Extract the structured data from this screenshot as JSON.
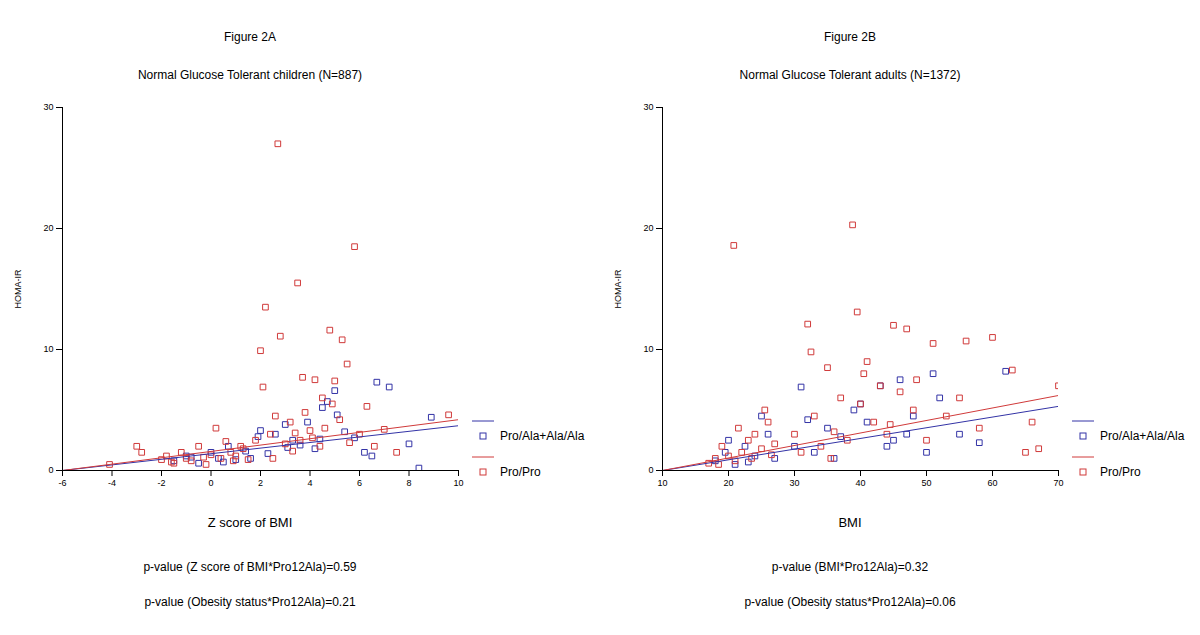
{
  "chart_data": [
    {
      "type": "scatter",
      "title": "Figure 2A",
      "subtitle": "Normal Glucose Tolerant children (N=887)",
      "x_label": "Z score of BMI",
      "y_label": "HOMA-IR",
      "annotations": [
        "p-value (Z score of BMI*Pro12Ala)=0.59",
        "p-value (Obesity status*Pro12Ala)=0.21"
      ],
      "xlim": [
        -6,
        10
      ],
      "xticks": [
        -6,
        -4,
        -2,
        0,
        2,
        4,
        6,
        8,
        10
      ],
      "ylim": [
        0,
        30
      ],
      "yticks": [
        0,
        10,
        20,
        30
      ],
      "legend": "right",
      "series": [
        {
          "name": "Pro/Ala+Ala/Ala",
          "color": "#3333a6",
          "marker": "square",
          "x": [
            -1.5,
            -1.0,
            -0.5,
            0,
            0.3,
            0.7,
            1.0,
            1.4,
            1.9,
            2.3,
            2.6,
            3.0,
            3.3,
            3.6,
            3.9,
            4.2,
            4.5,
            4.7,
            5.0,
            5.4,
            5.8,
            6.2,
            6.7,
            7.2,
            8.0,
            8.4,
            8.9,
            -0.8,
            0.5,
            2.0,
            3.1,
            4.4,
            5.1,
            6.5,
            1.6
          ],
          "values": [
            0.8,
            1.2,
            0.6,
            1.5,
            1.0,
            2.0,
            0.9,
            1.6,
            2.8,
            1.4,
            3.0,
            3.8,
            2.5,
            2.1,
            4.0,
            1.8,
            5.2,
            5.7,
            6.6,
            3.2,
            2.7,
            1.5,
            7.3,
            6.9,
            2.2,
            0.2,
            4.4,
            1.1,
            0.7,
            3.3,
            1.9,
            2.6,
            4.6,
            1.2,
            1.0
          ],
          "fit": {
            "x": [
              -6,
              10
            ],
            "values": [
              0,
              3.7
            ]
          }
        },
        {
          "name": "Pro/Pro",
          "color": "#d03a3a",
          "marker": "square",
          "x": [
            -4.1,
            -3.0,
            -2.8,
            -2.0,
            -1.8,
            -1.5,
            -1.2,
            -1.0,
            -0.8,
            -0.5,
            -0.3,
            0,
            0.2,
            0.4,
            0.6,
            0.8,
            1.0,
            1.2,
            1.5,
            1.8,
            2.0,
            2.1,
            2.2,
            2.4,
            2.6,
            2.7,
            2.8,
            3.0,
            3.2,
            3.4,
            3.5,
            3.6,
            3.7,
            3.8,
            4.0,
            4.2,
            4.4,
            4.5,
            4.6,
            4.8,
            5.0,
            5.2,
            5.3,
            5.5,
            5.8,
            6.0,
            6.3,
            6.6,
            7.0,
            7.5,
            9.6,
            -1.6,
            -0.2,
            0.9,
            1.3,
            2.5,
            3.3,
            4.1,
            4.9,
            5.6
          ],
          "values": [
            0.5,
            2.0,
            1.5,
            0.9,
            1.2,
            0.6,
            1.5,
            1.0,
            0.8,
            2.0,
            1.1,
            1.3,
            3.5,
            1.0,
            2.4,
            1.5,
            1.2,
            2.0,
            0.9,
            2.5,
            9.9,
            6.9,
            13.5,
            3.0,
            4.5,
            27.0,
            11.1,
            2.2,
            4.0,
            3.1,
            15.5,
            2.5,
            7.7,
            4.8,
            3.3,
            7.5,
            2.0,
            6.0,
            3.5,
            11.6,
            7.4,
            4.2,
            10.8,
            8.8,
            18.5,
            3.0,
            5.3,
            2.0,
            3.4,
            1.5,
            4.6,
            0.7,
            0.5,
            0.8,
            1.8,
            1.0,
            1.6,
            2.7,
            5.5,
            2.3
          ],
          "fit": {
            "x": [
              -6,
              10
            ],
            "values": [
              0,
              4.2
            ]
          }
        }
      ]
    },
    {
      "type": "scatter",
      "title": "Figure 2B",
      "subtitle": "Normal Glucose Tolerant adults (N=1372)",
      "x_label": "BMI",
      "y_label": "HOMA-IR",
      "annotations": [
        "p-value (BMI*Pro12Ala)=0.32",
        "p-value (Obesity status*Pro12Ala)=0.06"
      ],
      "xlim": [
        10,
        70
      ],
      "xticks": [
        10,
        20,
        30,
        40,
        50,
        60,
        70
      ],
      "ylim": [
        0,
        30
      ],
      "yticks": [
        0,
        10,
        20,
        30
      ],
      "legend": "right",
      "series": [
        {
          "name": "Pro/Ala+Ala/Ala",
          "color": "#3333a6",
          "marker": "square",
          "x": [
            18,
            19.5,
            21,
            22.5,
            24,
            25,
            26,
            27,
            20,
            23,
            30,
            31,
            33,
            35,
            37,
            39,
            41,
            43,
            45,
            47,
            48,
            50,
            51,
            52,
            55,
            58,
            62,
            32,
            36,
            40,
            44,
            46
          ],
          "values": [
            0.8,
            1.5,
            0.5,
            2.0,
            1.2,
            4.5,
            3.0,
            1.0,
            2.5,
            0.7,
            2.0,
            6.9,
            1.5,
            3.5,
            2.8,
            5.0,
            4.0,
            7.0,
            2.5,
            3.0,
            4.5,
            1.5,
            8.0,
            6.0,
            3.0,
            2.3,
            8.2,
            4.2,
            1.0,
            5.5,
            2.0,
            7.5
          ],
          "fit": {
            "x": [
              10,
              70
            ],
            "values": [
              0,
              5.3
            ]
          }
        },
        {
          "name": "Pro/Pro",
          "color": "#d03a3a",
          "marker": "square",
          "x": [
            17,
            18,
            19,
            20,
            20.8,
            21,
            22,
            23,
            24,
            25,
            26,
            27,
            18.5,
            21.5,
            23.5,
            25.5,
            26.5,
            30,
            31,
            32,
            33,
            34,
            35,
            36,
            37,
            38,
            38.8,
            39.5,
            40,
            41,
            42,
            43,
            44,
            45,
            46,
            47,
            48,
            50,
            51,
            53,
            55,
            56,
            58,
            60,
            63,
            65,
            66,
            67,
            70,
            32.5,
            35.5,
            40.5,
            44.5,
            48.5
          ],
          "values": [
            0.6,
            1.0,
            2.0,
            1.2,
            18.6,
            0.8,
            1.5,
            2.5,
            3.0,
            1.8,
            4.0,
            2.2,
            0.5,
            3.5,
            1.0,
            5.0,
            1.3,
            3.0,
            1.5,
            12.1,
            4.5,
            2.0,
            8.5,
            3.2,
            6.0,
            2.5,
            20.3,
            13.1,
            5.5,
            9.0,
            4.0,
            7.0,
            3.0,
            12.0,
            6.5,
            11.7,
            5.0,
            2.5,
            10.5,
            4.5,
            6.0,
            10.7,
            3.5,
            11.0,
            8.3,
            1.5,
            4.0,
            1.8,
            7.0,
            9.8,
            1.0,
            8.0,
            3.8,
            7.5
          ],
          "fit": {
            "x": [
              10,
              70
            ],
            "values": [
              0,
              6.2
            ]
          }
        }
      ]
    }
  ]
}
